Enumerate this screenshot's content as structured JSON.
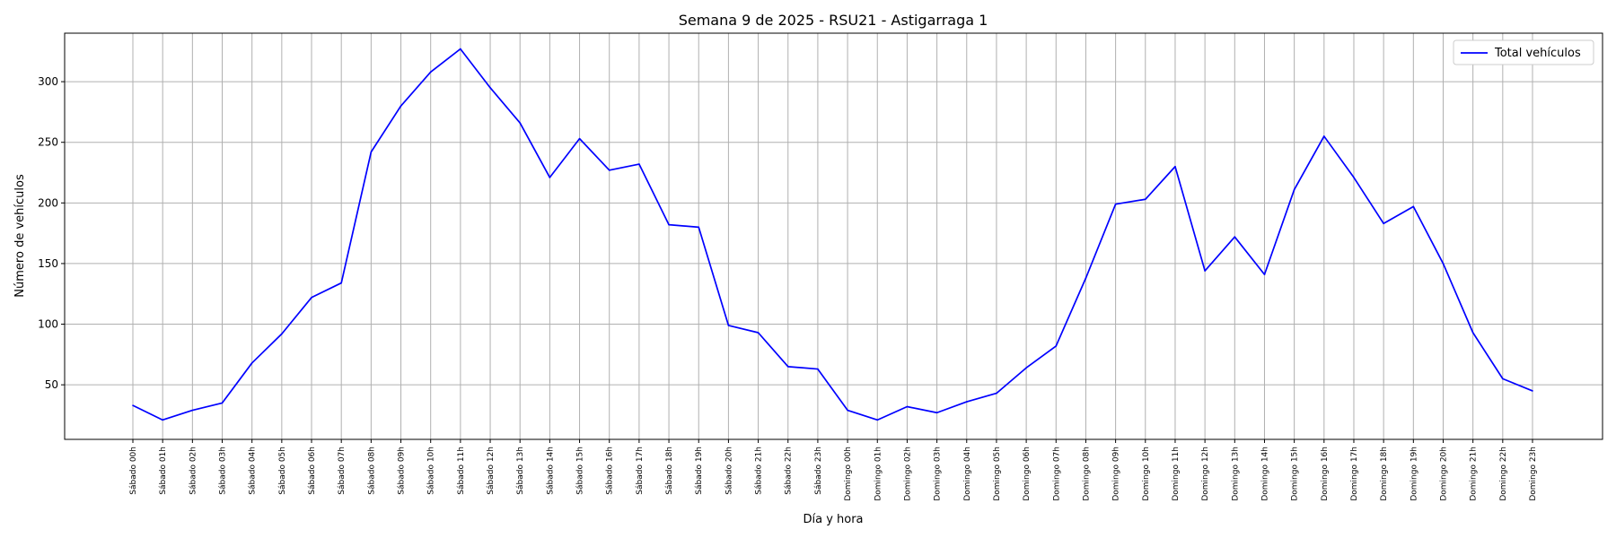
{
  "chart_data": {
    "type": "line",
    "title": "Semana 9 de 2025 - RSU21 - Astigarraga 1",
    "xlabel": "Día y hora",
    "ylabel": "Número de vehículos",
    "ylim": [
      5,
      340
    ],
    "yticks": [
      50,
      100,
      150,
      200,
      250,
      300
    ],
    "grid": true,
    "legend_position": "top-right",
    "line_color": "#0000ff",
    "categories": [
      "Sábado 00h",
      "Sábado 01h",
      "Sábado 02h",
      "Sábado 03h",
      "Sábado 04h",
      "Sábado 05h",
      "Sábado 06h",
      "Sábado 07h",
      "Sábado 08h",
      "Sábado 09h",
      "Sábado 10h",
      "Sábado 11h",
      "Sábado 12h",
      "Sábado 13h",
      "Sábado 14h",
      "Sábado 15h",
      "Sábado 16h",
      "Sábado 17h",
      "Sábado 18h",
      "Sábado 19h",
      "Sábado 20h",
      "Sábado 21h",
      "Sábado 22h",
      "Sábado 23h",
      "Domingo 00h",
      "Domingo 01h",
      "Domingo 02h",
      "Domingo 03h",
      "Domingo 04h",
      "Domingo 05h",
      "Domingo 06h",
      "Domingo 07h",
      "Domingo 08h",
      "Domingo 09h",
      "Domingo 10h",
      "Domingo 11h",
      "Domingo 12h",
      "Domingo 13h",
      "Domingo 14h",
      "Domingo 15h",
      "Domingo 16h",
      "Domingo 17h",
      "Domingo 18h",
      "Domingo 19h",
      "Domingo 20h",
      "Domingo 21h",
      "Domingo 22h",
      "Domingo 23h"
    ],
    "series": [
      {
        "name": "Total vehículos",
        "values": [
          33,
          21,
          29,
          35,
          68,
          92,
          122,
          134,
          242,
          280,
          308,
          327,
          295,
          266,
          221,
          253,
          227,
          232,
          182,
          180,
          99,
          93,
          65,
          63,
          29,
          21,
          32,
          27,
          36,
          43,
          64,
          82,
          138,
          199,
          203,
          230,
          144,
          172,
          141,
          211,
          255,
          221,
          183,
          197,
          150,
          93,
          55,
          45
        ]
      }
    ]
  }
}
